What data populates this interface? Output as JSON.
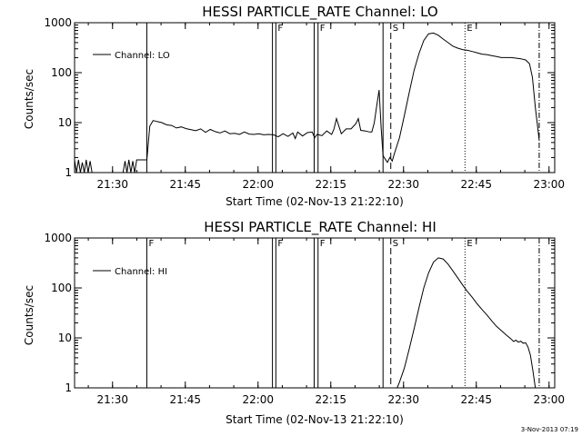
{
  "footer_timestamp": "3-Nov-2013 07:19",
  "chart_data": [
    {
      "type": "line",
      "title": "HESSI PARTICLE_RATE Channel: LO",
      "xlabel": "Start Time (02-Nov-13 21:22:10)",
      "ylabel": "Counts/sec",
      "x_unit": "minutes since 21:22:10",
      "xlim": [
        0,
        99
      ],
      "ylim": [
        1,
        1000
      ],
      "yscale": "log",
      "grid": false,
      "legend": {
        "placement": "top-left",
        "label": "Channel: LO"
      },
      "xticks": [
        {
          "x": 7.83,
          "label": "21:30"
        },
        {
          "x": 22.83,
          "label": "21:45"
        },
        {
          "x": 37.83,
          "label": "22:00"
        },
        {
          "x": 52.83,
          "label": "22:15"
        },
        {
          "x": 67.83,
          "label": "22:30"
        },
        {
          "x": 82.83,
          "label": "22:45"
        },
        {
          "x": 97.83,
          "label": "23:00"
        }
      ],
      "yticks": [
        {
          "y": 1,
          "label": "1"
        },
        {
          "y": 10,
          "label": "10"
        },
        {
          "y": 100,
          "label": "100"
        },
        {
          "y": 1000,
          "label": "1000"
        }
      ],
      "markers": [
        {
          "x": 14.9,
          "style": "solid",
          "label": ""
        },
        {
          "x": 40.8,
          "style": "solid",
          "label": ""
        },
        {
          "x": 41.5,
          "style": "solid",
          "label": "F"
        },
        {
          "x": 49.4,
          "style": "solid",
          "label": ""
        },
        {
          "x": 50.2,
          "style": "solid",
          "label": "F"
        },
        {
          "x": 63.6,
          "style": "solid",
          "label": ""
        },
        {
          "x": 65.2,
          "style": "dashed",
          "label": "S"
        },
        {
          "x": 80.5,
          "style": "dotted",
          "label": "E"
        },
        {
          "x": 95.8,
          "style": "dashdot",
          "label": ""
        }
      ],
      "series": [
        {
          "name": "Channel: LO",
          "x": [
            0,
            0.4,
            0.8,
            1.2,
            1.6,
            2.0,
            2.4,
            2.8,
            3.2,
            3.6,
            4.0,
            4.4,
            4.8,
            5.2,
            5.6,
            6,
            7,
            8,
            9,
            10,
            10.4,
            10.8,
            11.2,
            11.6,
            12.0,
            12.4,
            12.8,
            13.2,
            13.6,
            14.0,
            14.9,
            15.5,
            16.2,
            17,
            18,
            19,
            20,
            21,
            22,
            23,
            24,
            25,
            26,
            27,
            28,
            29,
            30,
            31,
            32,
            33,
            34,
            35,
            36,
            37,
            38,
            39,
            40,
            41,
            42,
            43,
            44,
            45,
            45.5,
            46,
            47,
            48,
            49,
            49.5,
            50,
            51,
            52,
            53,
            53.5,
            54,
            55,
            56,
            57,
            58,
            58.5,
            59,
            60,
            60.8,
            61.3,
            61.8,
            62.3,
            62.8,
            63.2,
            63.6,
            64,
            64.5,
            65,
            65.5,
            66,
            67,
            68,
            69,
            70,
            71,
            72,
            73,
            74,
            75,
            76,
            77,
            78,
            79,
            80,
            81,
            82,
            83,
            84,
            85,
            86,
            87,
            88,
            89,
            90,
            91,
            92,
            93,
            93.8,
            94.4,
            95,
            95.5,
            95.8
          ],
          "y": [
            1.8,
            1,
            1.8,
            1,
            1.6,
            1,
            1.8,
            1,
            1.7,
            1,
            1,
            1,
            1,
            1,
            1,
            1,
            1,
            1,
            1,
            1,
            1.7,
            1,
            1.8,
            1,
            1.7,
            1,
            1.8,
            1.8,
            1.8,
            1.8,
            1.8,
            8.5,
            11,
            10.5,
            10,
            9,
            8.8,
            7.8,
            8.2,
            7.6,
            7.2,
            6.9,
            7.5,
            6.4,
            7.3,
            6.6,
            6.2,
            6.8,
            6.0,
            6.1,
            5.8,
            6.5,
            5.9,
            5.8,
            6.0,
            5.7,
            5.8,
            5.7,
            5.2,
            6.0,
            5.3,
            6.2,
            4.8,
            6.5,
            5.4,
            6.3,
            6.5,
            5.0,
            5.8,
            5.5,
            6.8,
            5.8,
            7.5,
            12,
            6.0,
            7.5,
            7.5,
            9.5,
            12,
            7.0,
            6.8,
            6.5,
            6.5,
            10,
            22,
            45,
            8,
            2.2,
            1.9,
            1.6,
            2.0,
            1.7,
            2.5,
            5,
            14,
            40,
            110,
            240,
            440,
            600,
            620,
            560,
            470,
            400,
            340,
            310,
            290,
            280,
            265,
            250,
            235,
            230,
            220,
            210,
            200,
            200,
            200,
            195,
            190,
            180,
            150,
            80,
            20,
            8,
            4.5
          ]
        }
      ]
    },
    {
      "type": "line",
      "title": "HESSI PARTICLE_RATE Channel: HI",
      "xlabel": "Start Time (02-Nov-13 21:22:10)",
      "ylabel": "Counts/sec",
      "x_unit": "minutes since 21:22:10",
      "xlim": [
        0,
        99
      ],
      "ylim": [
        1,
        1000
      ],
      "yscale": "log",
      "grid": false,
      "legend": {
        "placement": "top-left",
        "label": "Channel: HI"
      },
      "xticks": [
        {
          "x": 7.83,
          "label": "21:30"
        },
        {
          "x": 22.83,
          "label": "21:45"
        },
        {
          "x": 37.83,
          "label": "22:00"
        },
        {
          "x": 52.83,
          "label": "22:15"
        },
        {
          "x": 67.83,
          "label": "22:30"
        },
        {
          "x": 82.83,
          "label": "22:45"
        },
        {
          "x": 97.83,
          "label": "23:00"
        }
      ],
      "yticks": [
        {
          "y": 1,
          "label": "1"
        },
        {
          "y": 10,
          "label": "10"
        },
        {
          "y": 100,
          "label": "100"
        },
        {
          "y": 1000,
          "label": "1000"
        }
      ],
      "markers": [
        {
          "x": 14.9,
          "style": "solid",
          "label": "F"
        },
        {
          "x": 40.8,
          "style": "solid",
          "label": ""
        },
        {
          "x": 41.5,
          "style": "solid",
          "label": "F"
        },
        {
          "x": 49.4,
          "style": "solid",
          "label": ""
        },
        {
          "x": 50.2,
          "style": "solid",
          "label": "F"
        },
        {
          "x": 63.6,
          "style": "solid",
          "label": ""
        },
        {
          "x": 65.2,
          "style": "dashed",
          "label": "S"
        },
        {
          "x": 80.5,
          "style": "dotted",
          "label": "E"
        },
        {
          "x": 95.8,
          "style": "dashdot",
          "label": ""
        }
      ],
      "series": [
        {
          "name": "Channel: HI",
          "x": [
            66.5,
            67,
            68,
            69,
            70,
            71,
            72,
            73,
            74,
            75,
            76,
            77,
            78,
            79,
            80,
            81,
            82,
            83,
            84,
            85,
            86,
            87,
            88,
            89,
            90,
            90.5,
            91,
            91.5,
            92,
            92.5,
            93,
            93.5,
            94,
            94.5,
            95
          ],
          "y": [
            1,
            1.3,
            2.5,
            6,
            15,
            40,
            100,
            200,
            330,
            400,
            380,
            300,
            220,
            160,
            115,
            85,
            65,
            48,
            37,
            29,
            22,
            17,
            14,
            11.5,
            9.5,
            8.5,
            9.0,
            8.2,
            8.6,
            7.8,
            8.0,
            6.5,
            4.5,
            2.2,
            1
          ]
        }
      ]
    }
  ]
}
